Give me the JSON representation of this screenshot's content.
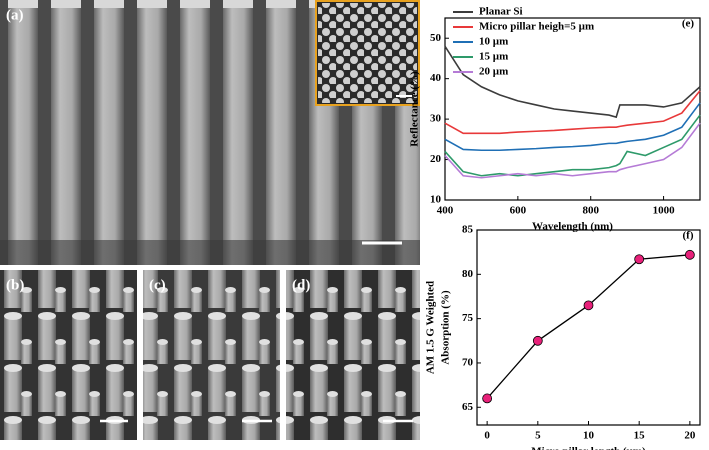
{
  "images": [
    {
      "label": "(a)"
    },
    {
      "label": "(b)"
    },
    {
      "label": "(c)"
    },
    {
      "label": "(d)"
    }
  ],
  "chart_data": [
    {
      "type": "line",
      "panel_label": "(e)",
      "x_label": "Wavelength (nm)",
      "y_label": "Reflectance (%)",
      "x": [
        400,
        450,
        500,
        550,
        600,
        650,
        700,
        750,
        800,
        850,
        870,
        880,
        900,
        950,
        1000,
        1050,
        1100
      ],
      "xlim": [
        400,
        1100
      ],
      "xticks": [
        400,
        600,
        800,
        1000
      ],
      "ylim": [
        10,
        55
      ],
      "yticks": [
        10,
        20,
        30,
        40,
        50
      ],
      "legend": "upper left",
      "series": [
        {
          "name": "Planar Si",
          "color": "#3c3c3c",
          "values": [
            48,
            41,
            38,
            36,
            34.5,
            33.5,
            32.5,
            32,
            31.5,
            31,
            30.5,
            33.5,
            33.5,
            33.5,
            33,
            34,
            38
          ]
        },
        {
          "name": "Micro pillar heigh=5 µm",
          "color": "#e8393a",
          "values": [
            29,
            26.5,
            26.5,
            26.5,
            26.8,
            27,
            27.2,
            27.5,
            27.8,
            28,
            28,
            28.2,
            28.5,
            29,
            29.5,
            31.5,
            37
          ]
        },
        {
          "name": "10 µm",
          "color": "#1f6fb5",
          "values": [
            25,
            22.5,
            22.3,
            22.3,
            22.5,
            22.7,
            23,
            23.2,
            23.5,
            24,
            24,
            24.2,
            24.5,
            25,
            26,
            28,
            34
          ]
        },
        {
          "name": "15 µm",
          "color": "#2e9a6a",
          "values": [
            22,
            17,
            16,
            16.5,
            16,
            16.5,
            17,
            17.5,
            17.5,
            18,
            18.5,
            19,
            22,
            21,
            23,
            25,
            31
          ]
        },
        {
          "name": "20 µm",
          "color": "#b57bd6",
          "values": [
            21,
            16,
            15.5,
            16,
            16.5,
            16,
            16.5,
            16,
            16.5,
            17,
            17,
            17.5,
            18,
            19,
            20,
            23,
            29
          ]
        }
      ]
    },
    {
      "type": "line",
      "panel_label": "(f)",
      "x_label": "Micro pillar length (µm)",
      "y_label": [
        "AM 1.5 G Weighted",
        "Absorption (%)"
      ],
      "x": [
        0,
        5,
        10,
        15,
        20
      ],
      "xlim": [
        -1,
        21
      ],
      "xticks": [
        0,
        5,
        10,
        15,
        20
      ],
      "ylim": [
        63,
        85
      ],
      "yticks": [
        65,
        70,
        75,
        80,
        85
      ],
      "marker_color": "#e8217a",
      "series": [
        {
          "color": "#000000",
          "values": [
            66,
            72.5,
            76.5,
            81.7,
            82.2
          ]
        }
      ]
    }
  ]
}
